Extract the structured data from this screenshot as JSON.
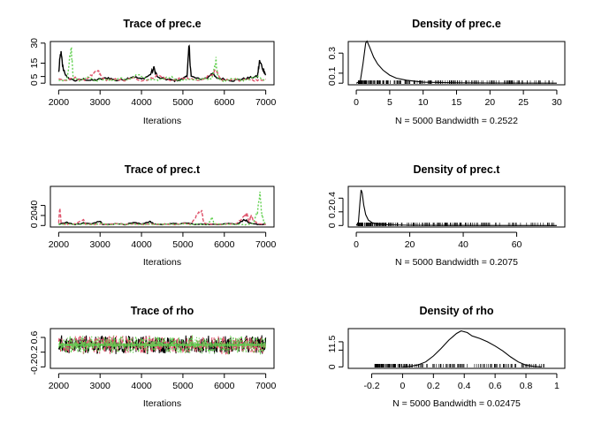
{
  "colors": {
    "chain1": "#000000",
    "chain2": "#DF536B",
    "chain3": "#61D04F",
    "density": "#000000",
    "rug": "#000000"
  },
  "chart_data": [
    {
      "type": "line",
      "title": "Trace of prec.e",
      "xlabel": "Iterations",
      "ylabel": "",
      "x_range": [
        2000,
        7000
      ],
      "ylim": [
        0,
        30
      ],
      "xticks": [
        2000,
        3000,
        4000,
        5000,
        6000,
        7000
      ],
      "yticks": [
        0,
        5,
        15,
        30
      ],
      "series": [
        {
          "values_summary": "chain 1",
          "points": [
            [
              2000,
              8
            ],
            [
              2050,
              23
            ],
            [
              2100,
              12
            ],
            [
              2200,
              4
            ],
            [
              2400,
              2
            ],
            [
              2600,
              3
            ],
            [
              2800,
              2
            ],
            [
              3000,
              3
            ],
            [
              3200,
              4
            ],
            [
              3400,
              2
            ],
            [
              3600,
              3
            ],
            [
              3800,
              5
            ],
            [
              4000,
              3
            ],
            [
              4200,
              6
            ],
            [
              4300,
              11
            ],
            [
              4400,
              4
            ],
            [
              4600,
              3
            ],
            [
              4800,
              2
            ],
            [
              5000,
              3
            ],
            [
              5100,
              6
            ],
            [
              5150,
              27
            ],
            [
              5200,
              5
            ],
            [
              5400,
              3
            ],
            [
              5600,
              4
            ],
            [
              5700,
              8
            ],
            [
              5800,
              4
            ],
            [
              6000,
              3
            ],
            [
              6200,
              2
            ],
            [
              6400,
              3
            ],
            [
              6600,
              4
            ],
            [
              6800,
              5
            ],
            [
              6850,
              16
            ],
            [
              6950,
              10
            ],
            [
              7000,
              6
            ]
          ]
        },
        {
          "values_summary": "chain 2",
          "points": [
            [
              2000,
              3
            ],
            [
              2200,
              2
            ],
            [
              2400,
              4
            ],
            [
              2600,
              2
            ],
            [
              2800,
              6
            ],
            [
              2950,
              9
            ],
            [
              3050,
              4
            ],
            [
              3200,
              2
            ],
            [
              3400,
              3
            ],
            [
              3600,
              2
            ],
            [
              3800,
              4
            ],
            [
              4000,
              2
            ],
            [
              4200,
              3
            ],
            [
              4400,
              6
            ],
            [
              4600,
              3
            ],
            [
              4800,
              2
            ],
            [
              5000,
              4
            ],
            [
              5200,
              3
            ],
            [
              5400,
              2
            ],
            [
              5600,
              5
            ],
            [
              5800,
              9
            ],
            [
              5900,
              3
            ],
            [
              6000,
              2
            ],
            [
              6200,
              3
            ],
            [
              6400,
              2
            ],
            [
              6600,
              3
            ],
            [
              6800,
              2
            ],
            [
              7000,
              3
            ]
          ]
        },
        {
          "values_summary": "chain 3",
          "points": [
            [
              2000,
              2
            ],
            [
              2200,
              3
            ],
            [
              2300,
              27
            ],
            [
              2350,
              4
            ],
            [
              2500,
              2
            ],
            [
              2700,
              5
            ],
            [
              2900,
              2
            ],
            [
              3100,
              3
            ],
            [
              3300,
              2
            ],
            [
              3500,
              4
            ],
            [
              3700,
              2
            ],
            [
              3900,
              7
            ],
            [
              4100,
              3
            ],
            [
              4300,
              2
            ],
            [
              4500,
              3
            ],
            [
              4700,
              5
            ],
            [
              4900,
              2
            ],
            [
              5100,
              3
            ],
            [
              5300,
              2
            ],
            [
              5500,
              4
            ],
            [
              5700,
              3
            ],
            [
              5800,
              17
            ],
            [
              5850,
              3
            ],
            [
              6000,
              2
            ],
            [
              6200,
              4
            ],
            [
              6400,
              2
            ],
            [
              6600,
              3
            ],
            [
              6800,
              5
            ],
            [
              7000,
              2
            ]
          ]
        }
      ]
    },
    {
      "type": "line",
      "title": "Density of prec.e",
      "xlabel": "N = 5000   Bandwidth = 0.2522",
      "ylabel": "",
      "x_range": [
        0,
        30
      ],
      "ylim": [
        0,
        0.4
      ],
      "xticks": [
        0,
        5,
        10,
        15,
        20,
        25,
        30
      ],
      "yticks": [
        0.0,
        0.1,
        0.3
      ],
      "series": [
        {
          "points": [
            [
              0,
              0
            ],
            [
              0.6,
              0.02
            ],
            [
              1.0,
              0.19
            ],
            [
              1.4,
              0.4
            ],
            [
              1.6,
              0.42
            ],
            [
              2.0,
              0.36
            ],
            [
              2.6,
              0.26
            ],
            [
              3.2,
              0.19
            ],
            [
              4.0,
              0.13
            ],
            [
              5.0,
              0.08
            ],
            [
              6.0,
              0.05
            ],
            [
              7.5,
              0.03
            ],
            [
              10,
              0.01
            ],
            [
              15,
              0.003
            ],
            [
              20,
              0.001
            ],
            [
              30,
              0
            ]
          ]
        }
      ],
      "rug_range": [
        0.3,
        29.5
      ]
    },
    {
      "type": "line",
      "title": "Trace of prec.t",
      "xlabel": "Iterations",
      "ylabel": "",
      "x_range": [
        2000,
        7000
      ],
      "ylim": [
        0,
        75
      ],
      "xticks": [
        2000,
        3000,
        4000,
        5000,
        6000,
        7000
      ],
      "yticks": [
        0,
        20,
        40
      ],
      "series": [
        {
          "values_summary": "chain 1",
          "points": [
            [
              2000,
              3
            ],
            [
              2200,
              6
            ],
            [
              2400,
              2
            ],
            [
              2600,
              5
            ],
            [
              2800,
              3
            ],
            [
              3000,
              10
            ],
            [
              3050,
              3
            ],
            [
              3200,
              2
            ],
            [
              3400,
              4
            ],
            [
              3600,
              2
            ],
            [
              3800,
              6
            ],
            [
              4000,
              3
            ],
            [
              4200,
              8
            ],
            [
              4300,
              3
            ],
            [
              4500,
              2
            ],
            [
              4700,
              4
            ],
            [
              4900,
              3
            ],
            [
              5100,
              5
            ],
            [
              5300,
              2
            ],
            [
              5500,
              3
            ],
            [
              5700,
              2
            ],
            [
              5900,
              3
            ],
            [
              6100,
              4
            ],
            [
              6300,
              3
            ],
            [
              6500,
              12
            ],
            [
              6600,
              5
            ],
            [
              6700,
              3
            ],
            [
              6900,
              2
            ],
            [
              7000,
              3
            ]
          ]
        },
        {
          "values_summary": "chain 2",
          "points": [
            [
              2000,
              5
            ],
            [
              2030,
              35
            ],
            [
              2060,
              4
            ],
            [
              2200,
              2
            ],
            [
              2400,
              3
            ],
            [
              2600,
              12
            ],
            [
              2650,
              3
            ],
            [
              2800,
              2
            ],
            [
              3000,
              3
            ],
            [
              3200,
              2
            ],
            [
              3400,
              4
            ],
            [
              3600,
              2
            ],
            [
              3800,
              3
            ],
            [
              4000,
              2
            ],
            [
              4200,
              3
            ],
            [
              4400,
              2
            ],
            [
              4600,
              3
            ],
            [
              4800,
              2
            ],
            [
              5000,
              4
            ],
            [
              5200,
              3
            ],
            [
              5350,
              22
            ],
            [
              5450,
              32
            ],
            [
              5500,
              5
            ],
            [
              5700,
              3
            ],
            [
              5900,
              2
            ],
            [
              6100,
              3
            ],
            [
              6300,
              4
            ],
            [
              6500,
              18
            ],
            [
              6550,
              22
            ],
            [
              6600,
              8
            ],
            [
              6650,
              20
            ],
            [
              6700,
              10
            ],
            [
              6800,
              4
            ],
            [
              7000,
              2
            ]
          ]
        },
        {
          "values_summary": "chain 3",
          "points": [
            [
              2000,
              2
            ],
            [
              2200,
              3
            ],
            [
              2400,
              2
            ],
            [
              2600,
              3
            ],
            [
              2800,
              2
            ],
            [
              3000,
              4
            ],
            [
              3200,
              2
            ],
            [
              3400,
              3
            ],
            [
              3600,
              2
            ],
            [
              3800,
              3
            ],
            [
              4000,
              2
            ],
            [
              4200,
              3
            ],
            [
              4400,
              2
            ],
            [
              4600,
              3
            ],
            [
              4800,
              2
            ],
            [
              5000,
              3
            ],
            [
              5200,
              2
            ],
            [
              5400,
              3
            ],
            [
              5600,
              2
            ],
            [
              5700,
              15
            ],
            [
              5750,
              4
            ],
            [
              5900,
              3
            ],
            [
              6100,
              2
            ],
            [
              6300,
              3
            ],
            [
              6500,
              2
            ],
            [
              6700,
              4
            ],
            [
              6800,
              30
            ],
            [
              6860,
              70
            ],
            [
              6900,
              25
            ],
            [
              6950,
              8
            ],
            [
              7000,
              3
            ]
          ]
        }
      ]
    },
    {
      "type": "line",
      "title": "Density of prec.t",
      "xlabel": "N = 5000   Bandwidth = 0.2075",
      "ylabel": "",
      "x_range": [
        0,
        75
      ],
      "ylim": [
        0,
        0.55
      ],
      "xticks": [
        0,
        20,
        40,
        60
      ],
      "yticks": [
        0.0,
        0.2,
        0.4
      ],
      "series": [
        {
          "points": [
            [
              0,
              0
            ],
            [
              0.8,
              0.05
            ],
            [
              1.4,
              0.35
            ],
            [
              1.8,
              0.52
            ],
            [
              2.2,
              0.48
            ],
            [
              2.8,
              0.3
            ],
            [
              3.5,
              0.16
            ],
            [
              4.5,
              0.08
            ],
            [
              6,
              0.04
            ],
            [
              8,
              0.02
            ],
            [
              12,
              0.01
            ],
            [
              20,
              0.004
            ],
            [
              40,
              0.001
            ],
            [
              75,
              0
            ]
          ]
        }
      ],
      "rug_range": [
        0.5,
        74
      ]
    },
    {
      "type": "line",
      "title": "Trace of rho",
      "xlabel": "Iterations",
      "ylabel": "",
      "x_range": [
        2000,
        7000
      ],
      "ylim": [
        -0.2,
        0.8
      ],
      "xticks": [
        2000,
        3000,
        4000,
        5000,
        6000,
        7000
      ],
      "yticks": [
        -0.2,
        0.2,
        0.6
      ],
      "band": {
        "mean": 0.4,
        "spread": 0.28
      }
    },
    {
      "type": "line",
      "title": "Density of rho",
      "xlabel": "N = 5000   Bandwidth = 0.02475",
      "ylabel": "",
      "x_range": [
        -0.3,
        1.0
      ],
      "ylim": [
        0,
        2.2
      ],
      "xticks": [
        -0.2,
        0.0,
        0.2,
        0.4,
        0.6,
        0.8,
        1.0
      ],
      "yticks": [
        0.0,
        1.0,
        1.5
      ],
      "series": [
        {
          "points": [
            [
              0.0,
              0
            ],
            [
              0.05,
              0.03
            ],
            [
              0.1,
              0.12
            ],
            [
              0.15,
              0.3
            ],
            [
              0.2,
              0.65
            ],
            [
              0.25,
              1.1
            ],
            [
              0.3,
              1.6
            ],
            [
              0.35,
              2.0
            ],
            [
              0.38,
              2.15
            ],
            [
              0.42,
              2.05
            ],
            [
              0.45,
              1.85
            ],
            [
              0.5,
              1.7
            ],
            [
              0.55,
              1.5
            ],
            [
              0.6,
              1.25
            ],
            [
              0.65,
              0.95
            ],
            [
              0.7,
              0.6
            ],
            [
              0.75,
              0.3
            ],
            [
              0.8,
              0.1
            ],
            [
              0.85,
              0.03
            ],
            [
              0.9,
              0.0
            ]
          ]
        }
      ],
      "rug_range": [
        -0.18,
        0.92
      ]
    }
  ]
}
